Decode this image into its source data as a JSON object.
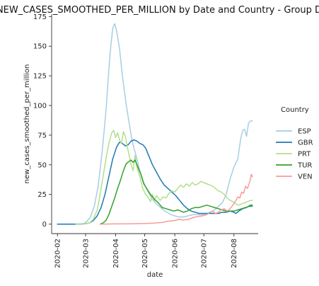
{
  "chart_data": {
    "type": "line",
    "title": "NEW_CASES_SMOOTHED_PER_MILLION by Date and Country - Group D",
    "xlabel": "date",
    "ylabel": "new_cases_smoothed_per_million",
    "xlim": [
      "2020-01-26",
      "2020-08-26"
    ],
    "ylim": [
      -8,
      177
    ],
    "xticks": [
      "2020-02",
      "2020-03",
      "2020-04",
      "2020-05",
      "2020-06",
      "2020-07",
      "2020-08"
    ],
    "yticks": [
      0,
      25,
      50,
      75,
      100,
      125,
      150,
      175
    ],
    "grid": false,
    "legend": {
      "title": "Country",
      "placement": "right"
    },
    "series": [
      {
        "name": "ESP",
        "color": "#a6cee3",
        "points": [
          [
            "2020-02-01",
            0
          ],
          [
            "2020-02-20",
            0
          ],
          [
            "2020-02-28",
            0.4
          ],
          [
            "2020-03-02",
            2
          ],
          [
            "2020-03-06",
            6
          ],
          [
            "2020-03-10",
            15
          ],
          [
            "2020-03-14",
            32
          ],
          [
            "2020-03-18",
            60
          ],
          [
            "2020-03-22",
            95
          ],
          [
            "2020-03-25",
            130
          ],
          [
            "2020-03-27",
            150
          ],
          [
            "2020-03-29",
            165
          ],
          [
            "2020-03-31",
            169
          ],
          [
            "2020-04-02",
            163
          ],
          [
            "2020-04-05",
            148
          ],
          [
            "2020-04-08",
            125
          ],
          [
            "2020-04-12",
            100
          ],
          [
            "2020-04-15",
            85
          ],
          [
            "2020-04-18",
            70
          ],
          [
            "2020-04-22",
            58
          ],
          [
            "2020-04-26",
            45
          ],
          [
            "2020-04-30",
            35
          ],
          [
            "2020-05-04",
            28
          ],
          [
            "2020-05-08",
            22
          ],
          [
            "2020-05-12",
            18
          ],
          [
            "2020-05-16",
            15
          ],
          [
            "2020-05-20",
            12
          ],
          [
            "2020-05-24",
            10
          ],
          [
            "2020-05-28",
            8
          ],
          [
            "2020-06-01",
            7
          ],
          [
            "2020-06-05",
            6
          ],
          [
            "2020-06-10",
            6
          ],
          [
            "2020-06-15",
            7
          ],
          [
            "2020-06-20",
            8
          ],
          [
            "2020-06-25",
            8
          ],
          [
            "2020-06-30",
            8
          ],
          [
            "2020-07-04",
            9
          ],
          [
            "2020-07-08",
            10
          ],
          [
            "2020-07-12",
            12
          ],
          [
            "2020-07-16",
            15
          ],
          [
            "2020-07-20",
            18
          ],
          [
            "2020-07-24",
            25
          ],
          [
            "2020-07-28",
            38
          ],
          [
            "2020-08-01",
            48
          ],
          [
            "2020-08-05",
            55
          ],
          [
            "2020-08-08",
            72
          ],
          [
            "2020-08-10",
            79
          ],
          [
            "2020-08-12",
            80
          ],
          [
            "2020-08-14",
            74
          ],
          [
            "2020-08-16",
            85
          ],
          [
            "2020-08-18",
            87
          ],
          [
            "2020-08-20",
            87
          ]
        ]
      },
      {
        "name": "GBR",
        "color": "#1f78b4",
        "points": [
          [
            "2020-02-01",
            0
          ],
          [
            "2020-02-25",
            0
          ],
          [
            "2020-03-01",
            0.3
          ],
          [
            "2020-03-05",
            1
          ],
          [
            "2020-03-09",
            3
          ],
          [
            "2020-03-13",
            7
          ],
          [
            "2020-03-17",
            14
          ],
          [
            "2020-03-21",
            25
          ],
          [
            "2020-03-25",
            40
          ],
          [
            "2020-03-29",
            55
          ],
          [
            "2020-04-02",
            65
          ],
          [
            "2020-04-05",
            69
          ],
          [
            "2020-04-08",
            68
          ],
          [
            "2020-04-11",
            66
          ],
          [
            "2020-04-14",
            67
          ],
          [
            "2020-04-17",
            70
          ],
          [
            "2020-04-20",
            71
          ],
          [
            "2020-04-23",
            70
          ],
          [
            "2020-04-26",
            68
          ],
          [
            "2020-04-29",
            67
          ],
          [
            "2020-05-02",
            64
          ],
          [
            "2020-05-05",
            58
          ],
          [
            "2020-05-09",
            50
          ],
          [
            "2020-05-13",
            44
          ],
          [
            "2020-05-17",
            38
          ],
          [
            "2020-05-21",
            33
          ],
          [
            "2020-05-25",
            30
          ],
          [
            "2020-05-29",
            27
          ],
          [
            "2020-06-02",
            24
          ],
          [
            "2020-06-06",
            20
          ],
          [
            "2020-06-10",
            16
          ],
          [
            "2020-06-14",
            13
          ],
          [
            "2020-06-18",
            11
          ],
          [
            "2020-06-22",
            10
          ],
          [
            "2020-06-26",
            9
          ],
          [
            "2020-06-30",
            9
          ],
          [
            "2020-07-04",
            9
          ],
          [
            "2020-07-08",
            9
          ],
          [
            "2020-07-12",
            9
          ],
          [
            "2020-07-16",
            9
          ],
          [
            "2020-07-20",
            10
          ],
          [
            "2020-07-24",
            10
          ],
          [
            "2020-07-28",
            11
          ],
          [
            "2020-08-01",
            10
          ],
          [
            "2020-08-03",
            9
          ],
          [
            "2020-08-06",
            11
          ],
          [
            "2020-08-10",
            13
          ],
          [
            "2020-08-14",
            14
          ],
          [
            "2020-08-18",
            16
          ],
          [
            "2020-08-20",
            16
          ]
        ]
      },
      {
        "name": "PRT",
        "color": "#b2df8a",
        "points": [
          [
            "2020-02-20",
            0
          ],
          [
            "2020-03-01",
            0.2
          ],
          [
            "2020-03-05",
            1
          ],
          [
            "2020-03-09",
            4
          ],
          [
            "2020-03-13",
            12
          ],
          [
            "2020-03-16",
            25
          ],
          [
            "2020-03-19",
            40
          ],
          [
            "2020-03-22",
            55
          ],
          [
            "2020-03-25",
            68
          ],
          [
            "2020-03-28",
            77
          ],
          [
            "2020-03-30",
            79
          ],
          [
            "2020-04-01",
            73
          ],
          [
            "2020-04-03",
            77
          ],
          [
            "2020-04-05",
            71
          ],
          [
            "2020-04-07",
            68
          ],
          [
            "2020-04-09",
            78
          ],
          [
            "2020-04-11",
            74
          ],
          [
            "2020-04-13",
            65
          ],
          [
            "2020-04-15",
            58
          ],
          [
            "2020-04-17",
            50
          ],
          [
            "2020-04-19",
            45
          ],
          [
            "2020-04-21",
            58
          ],
          [
            "2020-04-23",
            48
          ],
          [
            "2020-04-26",
            40
          ],
          [
            "2020-04-29",
            30
          ],
          [
            "2020-05-02",
            25
          ],
          [
            "2020-05-05",
            22
          ],
          [
            "2020-05-07",
            19
          ],
          [
            "2020-05-09",
            25
          ],
          [
            "2020-05-11",
            20
          ],
          [
            "2020-05-13",
            24
          ],
          [
            "2020-05-15",
            22
          ],
          [
            "2020-05-17",
            20
          ],
          [
            "2020-05-20",
            23
          ],
          [
            "2020-05-23",
            22
          ],
          [
            "2020-05-26",
            26
          ],
          [
            "2020-05-29",
            28
          ],
          [
            "2020-06-01",
            27
          ],
          [
            "2020-06-04",
            30
          ],
          [
            "2020-06-07",
            33
          ],
          [
            "2020-06-10",
            31
          ],
          [
            "2020-06-13",
            34
          ],
          [
            "2020-06-16",
            32
          ],
          [
            "2020-06-19",
            35
          ],
          [
            "2020-06-22",
            33
          ],
          [
            "2020-06-25",
            34
          ],
          [
            "2020-06-28",
            36
          ],
          [
            "2020-07-01",
            35
          ],
          [
            "2020-07-04",
            34
          ],
          [
            "2020-07-07",
            33
          ],
          [
            "2020-07-10",
            32
          ],
          [
            "2020-07-13",
            30
          ],
          [
            "2020-07-16",
            28
          ],
          [
            "2020-07-19",
            27
          ],
          [
            "2020-07-22",
            25
          ],
          [
            "2020-07-25",
            22
          ],
          [
            "2020-07-28",
            20
          ],
          [
            "2020-07-31",
            19
          ],
          [
            "2020-08-03",
            17
          ],
          [
            "2020-08-06",
            16
          ],
          [
            "2020-08-09",
            17
          ],
          [
            "2020-08-12",
            18
          ],
          [
            "2020-08-15",
            19
          ],
          [
            "2020-08-18",
            20
          ],
          [
            "2020-08-20",
            20
          ]
        ]
      },
      {
        "name": "TUR",
        "color": "#33a02c",
        "points": [
          [
            "2020-03-16",
            0
          ],
          [
            "2020-03-19",
            1
          ],
          [
            "2020-03-22",
            3
          ],
          [
            "2020-03-25",
            8
          ],
          [
            "2020-03-28",
            15
          ],
          [
            "2020-03-31",
            22
          ],
          [
            "2020-04-03",
            30
          ],
          [
            "2020-04-06",
            37
          ],
          [
            "2020-04-09",
            45
          ],
          [
            "2020-04-12",
            51
          ],
          [
            "2020-04-15",
            53
          ],
          [
            "2020-04-17",
            54
          ],
          [
            "2020-04-19",
            52
          ],
          [
            "2020-04-21",
            54
          ],
          [
            "2020-04-23",
            50
          ],
          [
            "2020-04-25",
            46
          ],
          [
            "2020-04-27",
            42
          ],
          [
            "2020-04-30",
            34
          ],
          [
            "2020-05-03",
            30
          ],
          [
            "2020-05-07",
            25
          ],
          [
            "2020-05-11",
            21
          ],
          [
            "2020-05-15",
            18
          ],
          [
            "2020-05-19",
            14
          ],
          [
            "2020-05-23",
            13
          ],
          [
            "2020-05-27",
            12
          ],
          [
            "2020-05-31",
            11
          ],
          [
            "2020-06-04",
            12
          ],
          [
            "2020-06-07",
            11
          ],
          [
            "2020-06-10",
            10
          ],
          [
            "2020-06-14",
            11
          ],
          [
            "2020-06-18",
            13
          ],
          [
            "2020-06-22",
            14
          ],
          [
            "2020-06-26",
            14
          ],
          [
            "2020-06-30",
            15
          ],
          [
            "2020-07-04",
            16
          ],
          [
            "2020-07-08",
            15
          ],
          [
            "2020-07-12",
            14
          ],
          [
            "2020-07-16",
            13
          ],
          [
            "2020-07-20",
            12
          ],
          [
            "2020-07-24",
            11
          ],
          [
            "2020-07-28",
            11
          ],
          [
            "2020-08-01",
            11
          ],
          [
            "2020-08-05",
            12
          ],
          [
            "2020-08-09",
            13
          ],
          [
            "2020-08-13",
            14
          ],
          [
            "2020-08-17",
            15
          ],
          [
            "2020-08-20",
            15
          ]
        ]
      },
      {
        "name": "VEN",
        "color": "#fb9a99",
        "points": [
          [
            "2020-03-16",
            0
          ],
          [
            "2020-04-01",
            0.2
          ],
          [
            "2020-04-15",
            0.3
          ],
          [
            "2020-05-01",
            0.5
          ],
          [
            "2020-05-10",
            0.8
          ],
          [
            "2020-05-20",
            1.5
          ],
          [
            "2020-05-25",
            2.5
          ],
          [
            "2020-06-01",
            3
          ],
          [
            "2020-06-05",
            4
          ],
          [
            "2020-06-10",
            3.5
          ],
          [
            "2020-06-15",
            4
          ],
          [
            "2020-06-20",
            5.5
          ],
          [
            "2020-06-25",
            6.5
          ],
          [
            "2020-06-30",
            7
          ],
          [
            "2020-07-04",
            8
          ],
          [
            "2020-07-07",
            10
          ],
          [
            "2020-07-10",
            11
          ],
          [
            "2020-07-13",
            9
          ],
          [
            "2020-07-16",
            10
          ],
          [
            "2020-07-19",
            12
          ],
          [
            "2020-07-22",
            13
          ],
          [
            "2020-07-25",
            11
          ],
          [
            "2020-07-28",
            13
          ],
          [
            "2020-07-31",
            16
          ],
          [
            "2020-08-03",
            20
          ],
          [
            "2020-08-05",
            23
          ],
          [
            "2020-08-07",
            22
          ],
          [
            "2020-08-09",
            27
          ],
          [
            "2020-08-11",
            26
          ],
          [
            "2020-08-13",
            32
          ],
          [
            "2020-08-15",
            30
          ],
          [
            "2020-08-17",
            35
          ],
          [
            "2020-08-18",
            38
          ],
          [
            "2020-08-19",
            42
          ],
          [
            "2020-08-20",
            40
          ]
        ]
      }
    ]
  }
}
